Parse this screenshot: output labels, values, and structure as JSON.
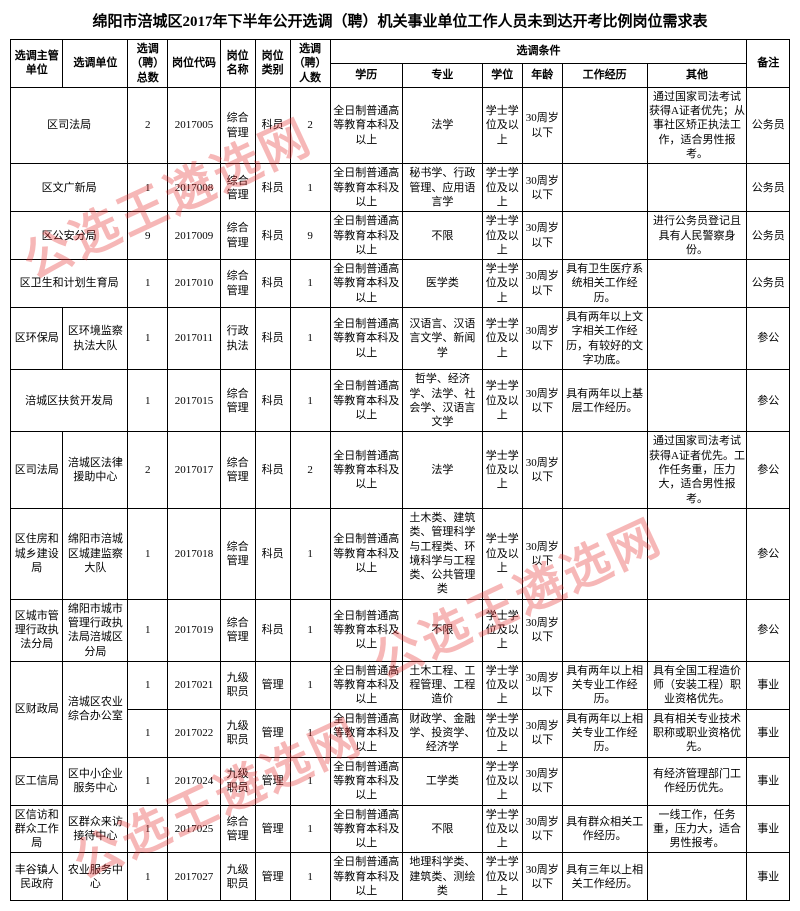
{
  "title": "绵阳市涪城区2017年下半年公开选调（聘）机关事业单位工作人员未到达开考比例岗位需求表",
  "watermark_text": "公选王遴选网",
  "headers": {
    "dept": "选调主管单位",
    "unit": "选调单位",
    "total": "选调（聘）总数",
    "code": "岗位代码",
    "name": "岗位名称",
    "type": "岗位类别",
    "count": "选调（聘）人数",
    "cond": "选调条件",
    "edu": "学历",
    "major": "专业",
    "degree": "学位",
    "age": "年龄",
    "exp": "工作经历",
    "other": "其他",
    "remark": "备注"
  },
  "rows": [
    {
      "dept": "",
      "unit": "区司法局",
      "total": "2",
      "code": "2017005",
      "name": "综合管理",
      "type": "科员",
      "count": "2",
      "edu": "全日制普通高等教育本科及以上",
      "major": "法学",
      "degree": "学士学位及以上",
      "age": "30周岁以下",
      "exp": "",
      "other": "通过国家司法考试获得A证者优先；从事社区矫正执法工作，适合男性报考。",
      "remark": "公务员"
    },
    {
      "dept": "",
      "unit": "区文广新局",
      "total": "1",
      "code": "2017008",
      "name": "综合管理",
      "type": "科员",
      "count": "1",
      "edu": "全日制普通高等教育本科及以上",
      "major": "秘书学、行政管理、应用语言学",
      "degree": "学士学位及以上",
      "age": "30周岁以下",
      "exp": "",
      "other": "",
      "remark": "公务员"
    },
    {
      "dept": "",
      "unit": "区公安分局",
      "total": "9",
      "code": "2017009",
      "name": "综合管理",
      "type": "科员",
      "count": "9",
      "edu": "全日制普通高等教育本科及以上",
      "major": "不限",
      "degree": "学士学位及以上",
      "age": "30周岁以下",
      "exp": "",
      "other": "进行公务员登记且具有人民警察身份。",
      "remark": "公务员"
    },
    {
      "dept": "",
      "unit": "区卫生和计划生育局",
      "total": "1",
      "code": "2017010",
      "name": "综合管理",
      "type": "科员",
      "count": "1",
      "edu": "全日制普通高等教育本科及以上",
      "major": "医学类",
      "degree": "学士学位及以上",
      "age": "30周岁以下",
      "exp": "具有卫生医疗系统相关工作经历。",
      "other": "",
      "remark": "公务员"
    },
    {
      "dept": "区环保局",
      "unit": "区环境监察执法大队",
      "total": "1",
      "code": "2017011",
      "name": "行政执法",
      "type": "科员",
      "count": "1",
      "edu": "全日制普通高等教育本科及以上",
      "major": "汉语言、汉语言文学、新闻学",
      "degree": "学士学位及以上",
      "age": "30周岁以下",
      "exp": "具有两年以上文字相关工作经历，有较好的文字功底。",
      "other": "",
      "remark": "参公"
    },
    {
      "dept": "",
      "unit": "涪城区扶贫开发局",
      "total": "1",
      "code": "2017015",
      "name": "综合管理",
      "type": "科员",
      "count": "1",
      "edu": "全日制普通高等教育本科及以上",
      "major": "哲学、经济学、法学、社会学、汉语言文学",
      "degree": "学士学位及以上",
      "age": "30周岁以下",
      "exp": "具有两年以上基层工作经历。",
      "other": "",
      "remark": "参公"
    },
    {
      "dept": "区司法局",
      "unit": "涪城区法律援助中心",
      "total": "2",
      "code": "2017017",
      "name": "综合管理",
      "type": "科员",
      "count": "2",
      "edu": "全日制普通高等教育本科及以上",
      "major": "法学",
      "degree": "学士学位及以上",
      "age": "30周岁以下",
      "exp": "",
      "other": "通过国家司法考试获得A证者优先。工作任务重，压力大，适合男性报考。",
      "remark": "参公"
    },
    {
      "dept": "区住房和城乡建设局",
      "unit": "绵阳市涪城区城建监察大队",
      "total": "1",
      "code": "2017018",
      "name": "综合管理",
      "type": "科员",
      "count": "1",
      "edu": "全日制普通高等教育本科及以上",
      "major": "土木类、建筑类、管理科学与工程类、环境科学与工程类、公共管理类",
      "degree": "学士学位及以上",
      "age": "30周岁以下",
      "exp": "",
      "other": "",
      "remark": "参公"
    },
    {
      "dept": "区城市管理行政执法分局",
      "unit": "绵阳市城市管理行政执法局涪城区分局",
      "total": "1",
      "code": "2017019",
      "name": "综合管理",
      "type": "科员",
      "count": "1",
      "edu": "全日制普通高等教育本科及以上",
      "major": "不限",
      "degree": "学士学位及以上",
      "age": "30周岁以下",
      "exp": "",
      "other": "",
      "remark": "参公"
    },
    {
      "dept": "区财政局",
      "unit": "涪城区农业综合办公室",
      "total": "1",
      "code": "2017021",
      "name": "九级职员",
      "type": "管理",
      "count": "1",
      "edu": "全日制普通高等教育本科及以上",
      "major": "土木工程、工程管理、工程造价",
      "degree": "学士学位及以上",
      "age": "30周岁以下",
      "exp": "具有两年以上相关专业工作经历。",
      "other": "具有全国工程造价师（安装工程）职业资格优先。",
      "remark": "事业",
      "deptRowspan": 2
    },
    {
      "dept": "",
      "unit": "",
      "total": "1",
      "code": "2017022",
      "name": "九级职员",
      "type": "管理",
      "count": "1",
      "edu": "全日制普通高等教育本科及以上",
      "major": "财政学、金融学、投资学、经济学",
      "degree": "学士学位及以上",
      "age": "30周岁以下",
      "exp": "具有两年以上相关专业工作经历。",
      "other": "具有相关专业技术职称或职业资格优先。",
      "remark": "事业",
      "skipDept": true,
      "skipUnit": true
    },
    {
      "dept": "区工信局",
      "unit": "区中小企业服务中心",
      "total": "1",
      "code": "2017024",
      "name": "九级职员",
      "type": "管理",
      "count": "1",
      "edu": "全日制普通高等教育本科及以上",
      "major": "工学类",
      "degree": "学士学位及以上",
      "age": "30周岁以下",
      "exp": "",
      "other": "有经济管理部门工作经历优先。",
      "remark": "事业"
    },
    {
      "dept": "区信访和群众工作局",
      "unit": "区群众来访接待中心",
      "total": "1",
      "code": "2017025",
      "name": "综合管理",
      "type": "管理",
      "count": "1",
      "edu": "全日制普通高等教育本科及以上",
      "major": "不限",
      "degree": "学士学位及以上",
      "age": "30周岁以下",
      "exp": "具有群众相关工作经历。",
      "other": "一线工作，任务重，压力大，适合男性报考。",
      "remark": "事业"
    },
    {
      "dept": "丰谷镇人民政府",
      "unit": "农业服务中心",
      "total": "1",
      "code": "2017027",
      "name": "九级职员",
      "type": "管理",
      "count": "1",
      "edu": "全日制普通高等教育本科及以上",
      "major": "地理科学类、建筑类、测绘类",
      "degree": "学士学位及以上",
      "age": "30周岁以下",
      "exp": "具有三年以上相关工作经历。",
      "other": "",
      "remark": "事业"
    }
  ],
  "colwidths": [
    "42",
    "52",
    "32",
    "42",
    "28",
    "28",
    "32",
    "58",
    "64",
    "32",
    "32",
    "68",
    "80",
    "34"
  ]
}
